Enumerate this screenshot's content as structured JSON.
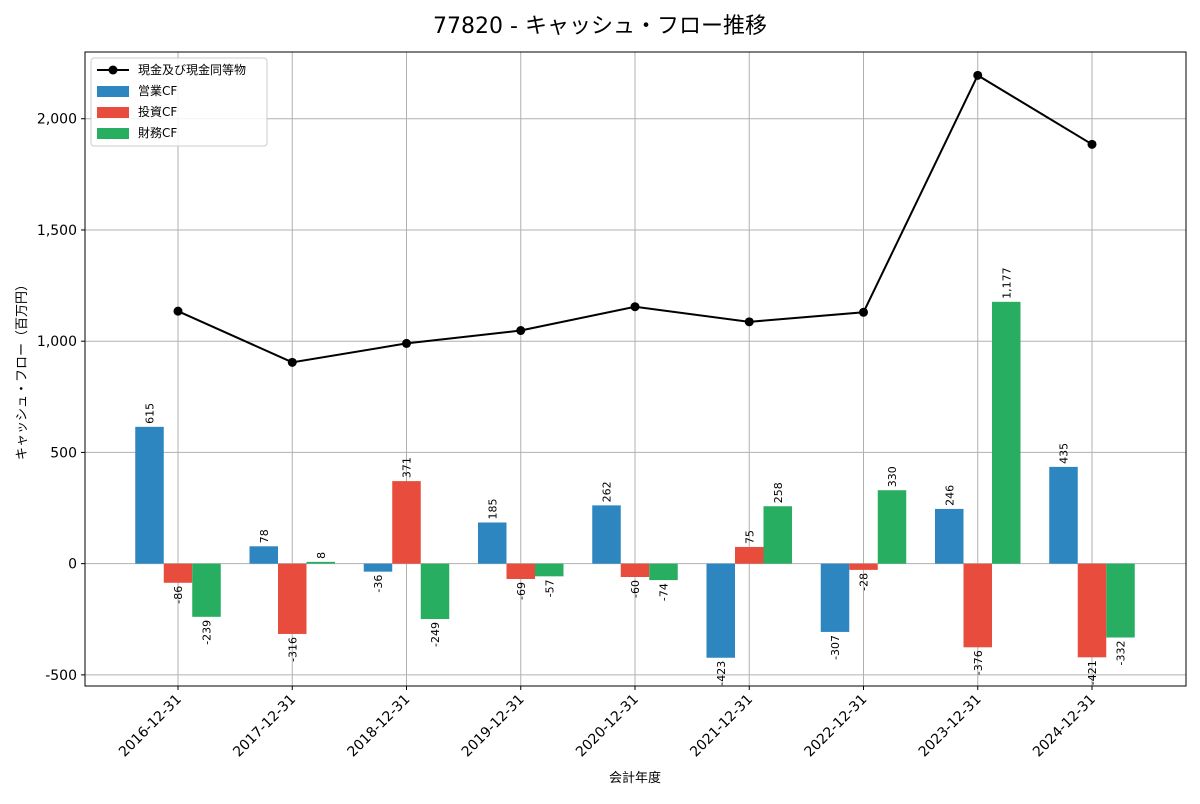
{
  "chart_data": {
    "type": "bar",
    "title": "77820 - キャッシュ・フロー推移",
    "xlabel": "会計年度",
    "ylabel": "キャッシュ・フロー（百万円）",
    "ylim": [
      -550,
      2300
    ],
    "yticks": [
      -500,
      0,
      500,
      1000,
      1500,
      2000
    ],
    "ytick_labels": [
      "-500",
      "0",
      "500",
      "1,000",
      "1,500",
      "2,000"
    ],
    "grid": true,
    "legend_position": "top-left",
    "categories": [
      "2016-12-31",
      "2017-12-31",
      "2018-12-31",
      "2019-12-31",
      "2020-12-31",
      "2021-12-31",
      "2022-12-31",
      "2023-12-31",
      "2024-12-31"
    ],
    "series": [
      {
        "name": "営業CF",
        "kind": "bar",
        "color": "#2e86c1",
        "values": [
          615,
          78,
          -36,
          185,
          262,
          -423,
          -307,
          246,
          435
        ],
        "labels": [
          "615",
          "78",
          "-36",
          "185",
          "262",
          "-423",
          "-307",
          "246",
          "435"
        ]
      },
      {
        "name": "投資CF",
        "kind": "bar",
        "color": "#e74c3c",
        "values": [
          -86,
          -316,
          371,
          -69,
          -60,
          75,
          -28,
          -376,
          -421
        ],
        "labels": [
          "-86",
          "-316",
          "371",
          "-69",
          "-60",
          "75",
          "-28",
          "-376",
          "-421"
        ]
      },
      {
        "name": "財務CF",
        "kind": "bar",
        "color": "#27ae60",
        "values": [
          -239,
          8,
          -249,
          -57,
          -74,
          258,
          330,
          1177,
          -332
        ],
        "labels": [
          "-239",
          "8",
          "-249",
          "-57",
          "-74",
          "258",
          "330",
          "1,177",
          "-332"
        ]
      },
      {
        "name": "現金及び現金同等物",
        "kind": "line",
        "color": "#000000",
        "values": [
          1135,
          905,
          990,
          1048,
          1155,
          1087,
          1130,
          2195,
          1885
        ]
      }
    ]
  }
}
